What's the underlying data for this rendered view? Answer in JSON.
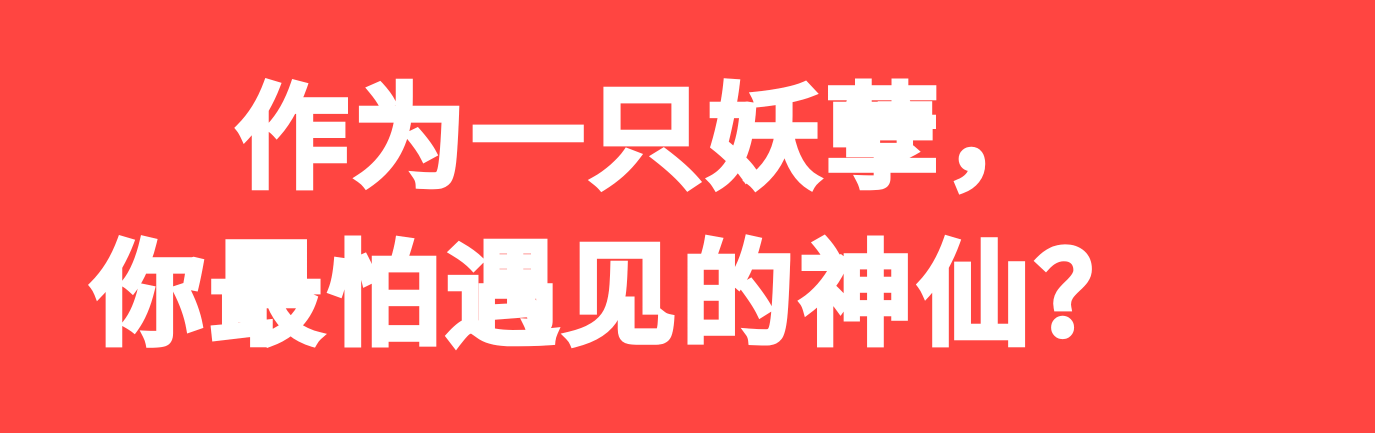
{
  "banner": {
    "background_color": "#ff4541",
    "text_color": "#ffffff",
    "line_1": "作为一只妖孽，",
    "line_2": "你最怕遇见的神仙？"
  }
}
